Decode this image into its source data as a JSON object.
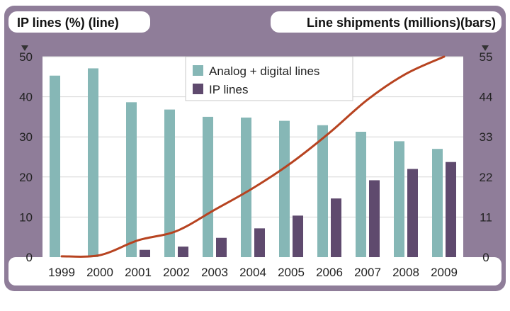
{
  "chart_data": {
    "type": "bar",
    "left_axis_title": "IP lines (%) (line)",
    "right_axis_title": "Line shipments (millions)(bars)",
    "categories": [
      "1999",
      "2000",
      "2001",
      "2002",
      "2003",
      "2004",
      "2005",
      "2006",
      "2007",
      "2008",
      "2009"
    ],
    "left_ticks": [
      "0",
      "10",
      "20",
      "30",
      "40",
      "50"
    ],
    "left_range": [
      0,
      50
    ],
    "right_ticks": [
      "0",
      "11",
      "22",
      "33",
      "44",
      "55"
    ],
    "right_range": [
      0,
      55
    ],
    "series": [
      {
        "name": "Analog + digital lines",
        "kind": "bar",
        "axis": "right",
        "color": "#86b7b6",
        "values": [
          49.8,
          51.8,
          42.5,
          40.5,
          38.5,
          38.3,
          37.4,
          36.2,
          34.4,
          31.8,
          29.7
        ]
      },
      {
        "name": "IP lines",
        "kind": "bar",
        "axis": "right",
        "color": "#5f4a6e",
        "values": [
          0,
          0,
          2.0,
          2.9,
          5.3,
          7.9,
          11.4,
          16.1,
          21.1,
          24.2,
          26.1
        ]
      },
      {
        "name": "IP lines (%)",
        "kind": "line",
        "axis": "left",
        "color": "#b74320",
        "values": [
          0.2,
          0.5,
          4.2,
          6.5,
          11.8,
          17.2,
          23.5,
          31.0,
          39.3,
          45.7,
          50.0
        ]
      }
    ],
    "legend": [
      {
        "label": "Analog + digital lines",
        "color": "#86b7b6"
      },
      {
        "label": "IP lines",
        "color": "#5f4a6e"
      }
    ],
    "legend_position": "top-center"
  }
}
